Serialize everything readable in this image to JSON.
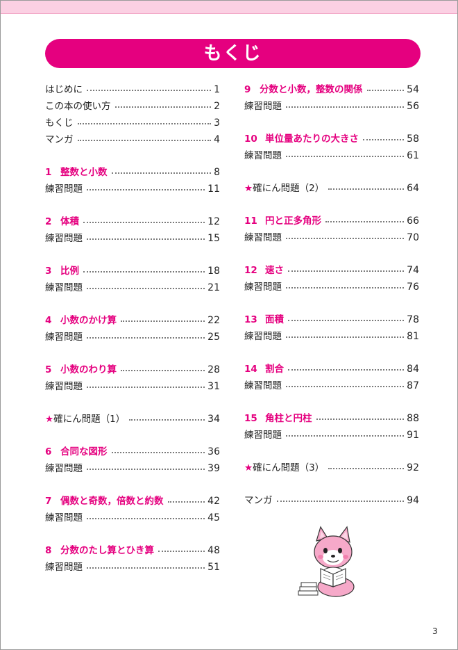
{
  "title": "もくじ",
  "page_number": "3",
  "left_column": [
    {
      "label": "はじめに",
      "page": "1"
    },
    {
      "label": "この本の使い方",
      "page": "2"
    },
    {
      "label": "もくじ",
      "page": "3"
    },
    {
      "label": "マンガ",
      "page": "4"
    },
    {
      "num": "1",
      "title": "整数と小数",
      "page": "8"
    },
    {
      "label": "練習問題",
      "page": "11"
    },
    {
      "num": "2",
      "title": "体積",
      "page": "12"
    },
    {
      "label": "練習問題",
      "page": "15"
    },
    {
      "num": "3",
      "title": "比例",
      "page": "18"
    },
    {
      "label": "練習問題",
      "page": "21"
    },
    {
      "num": "4",
      "title": "小数のかけ算",
      "page": "22"
    },
    {
      "label": "練習問題",
      "page": "25"
    },
    {
      "num": "5",
      "title": "小数のわり算",
      "page": "28"
    },
    {
      "label": "練習問題",
      "page": "31"
    },
    {
      "star": "★",
      "label": "確にん問題（1）",
      "page": "34"
    },
    {
      "num": "6",
      "title": "合同な図形",
      "page": "36"
    },
    {
      "label": "練習問題",
      "page": "39"
    },
    {
      "num": "7",
      "title": "偶数と奇数，倍数と約数",
      "page": "42"
    },
    {
      "label": "練習問題",
      "page": "45"
    },
    {
      "num": "8",
      "title": "分数のたし算とひき算",
      "page": "48"
    },
    {
      "label": "練習問題",
      "page": "51"
    }
  ],
  "right_column": [
    {
      "num": "9",
      "title": "分数と小数，整数の関係",
      "page": "54"
    },
    {
      "label": "練習問題",
      "page": "56"
    },
    {
      "num": "10",
      "title": "単位量あたりの大きさ",
      "page": "58"
    },
    {
      "label": "練習問題",
      "page": "61"
    },
    {
      "star": "★",
      "label": "確にん問題（2）",
      "page": "64"
    },
    {
      "num": "11",
      "title": "円と正多角形",
      "page": "66"
    },
    {
      "label": "練習問題",
      "page": "70"
    },
    {
      "num": "12",
      "title": "速さ",
      "page": "74"
    },
    {
      "label": "練習問題",
      "page": "76"
    },
    {
      "num": "13",
      "title": "面積",
      "page": "78"
    },
    {
      "label": "練習問題",
      "page": "81"
    },
    {
      "num": "14",
      "title": "割合",
      "page": "84"
    },
    {
      "label": "練習問題",
      "page": "87"
    },
    {
      "num": "15",
      "title": "角柱と円柱",
      "page": "88"
    },
    {
      "label": "練習問題",
      "page": "91"
    },
    {
      "star": "★",
      "label": "確にん問題（3）",
      "page": "92"
    },
    {
      "label": "マンガ",
      "page": "94"
    }
  ]
}
